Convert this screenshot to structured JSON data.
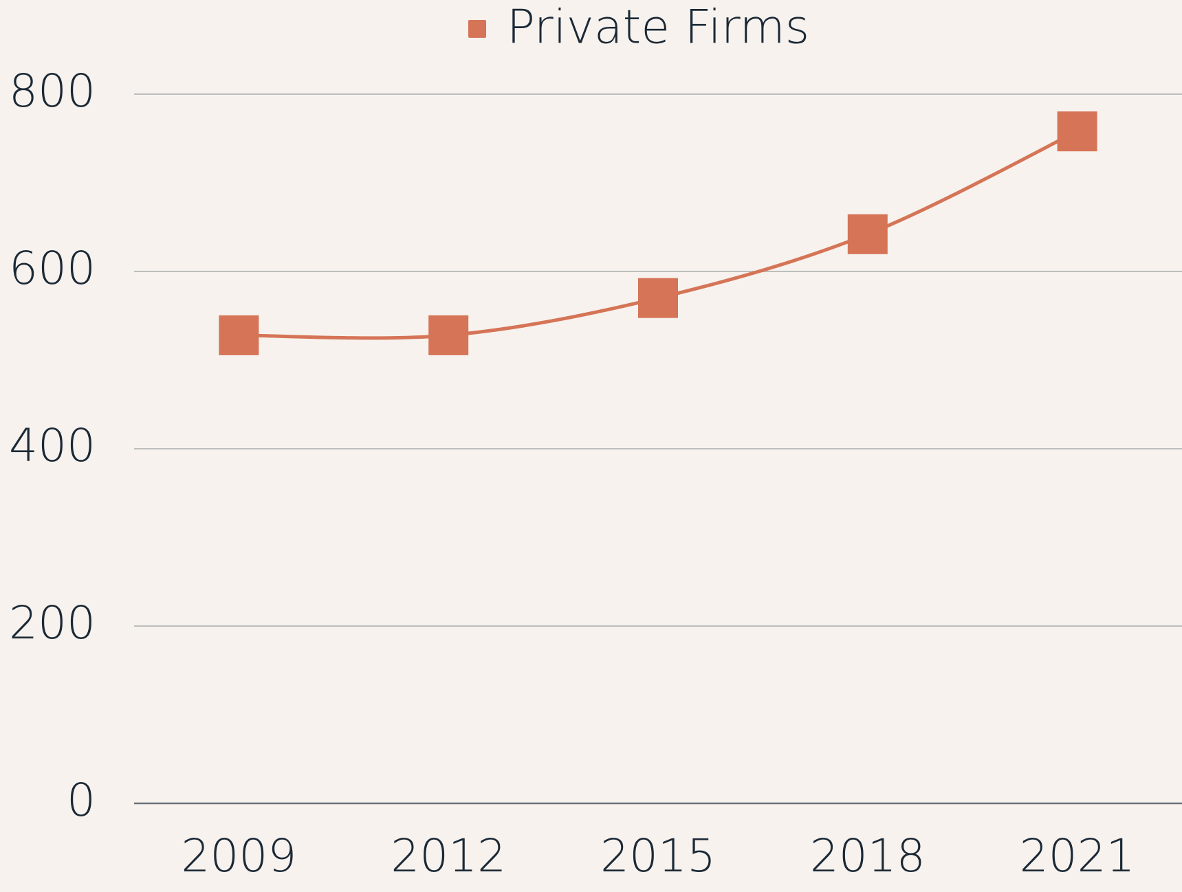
{
  "chart_data": {
    "type": "line",
    "categories": [
      "2009",
      "2012",
      "2015",
      "2018",
      "2021"
    ],
    "series": [
      {
        "name": "Private Firms",
        "color": "#d57456",
        "values": [
          528,
          528,
          570,
          642,
          758
        ]
      }
    ],
    "ylim": [
      0,
      800
    ],
    "yticks": [
      0,
      200,
      400,
      600,
      800
    ],
    "grid": true,
    "legend": "top",
    "marker": "square"
  }
}
